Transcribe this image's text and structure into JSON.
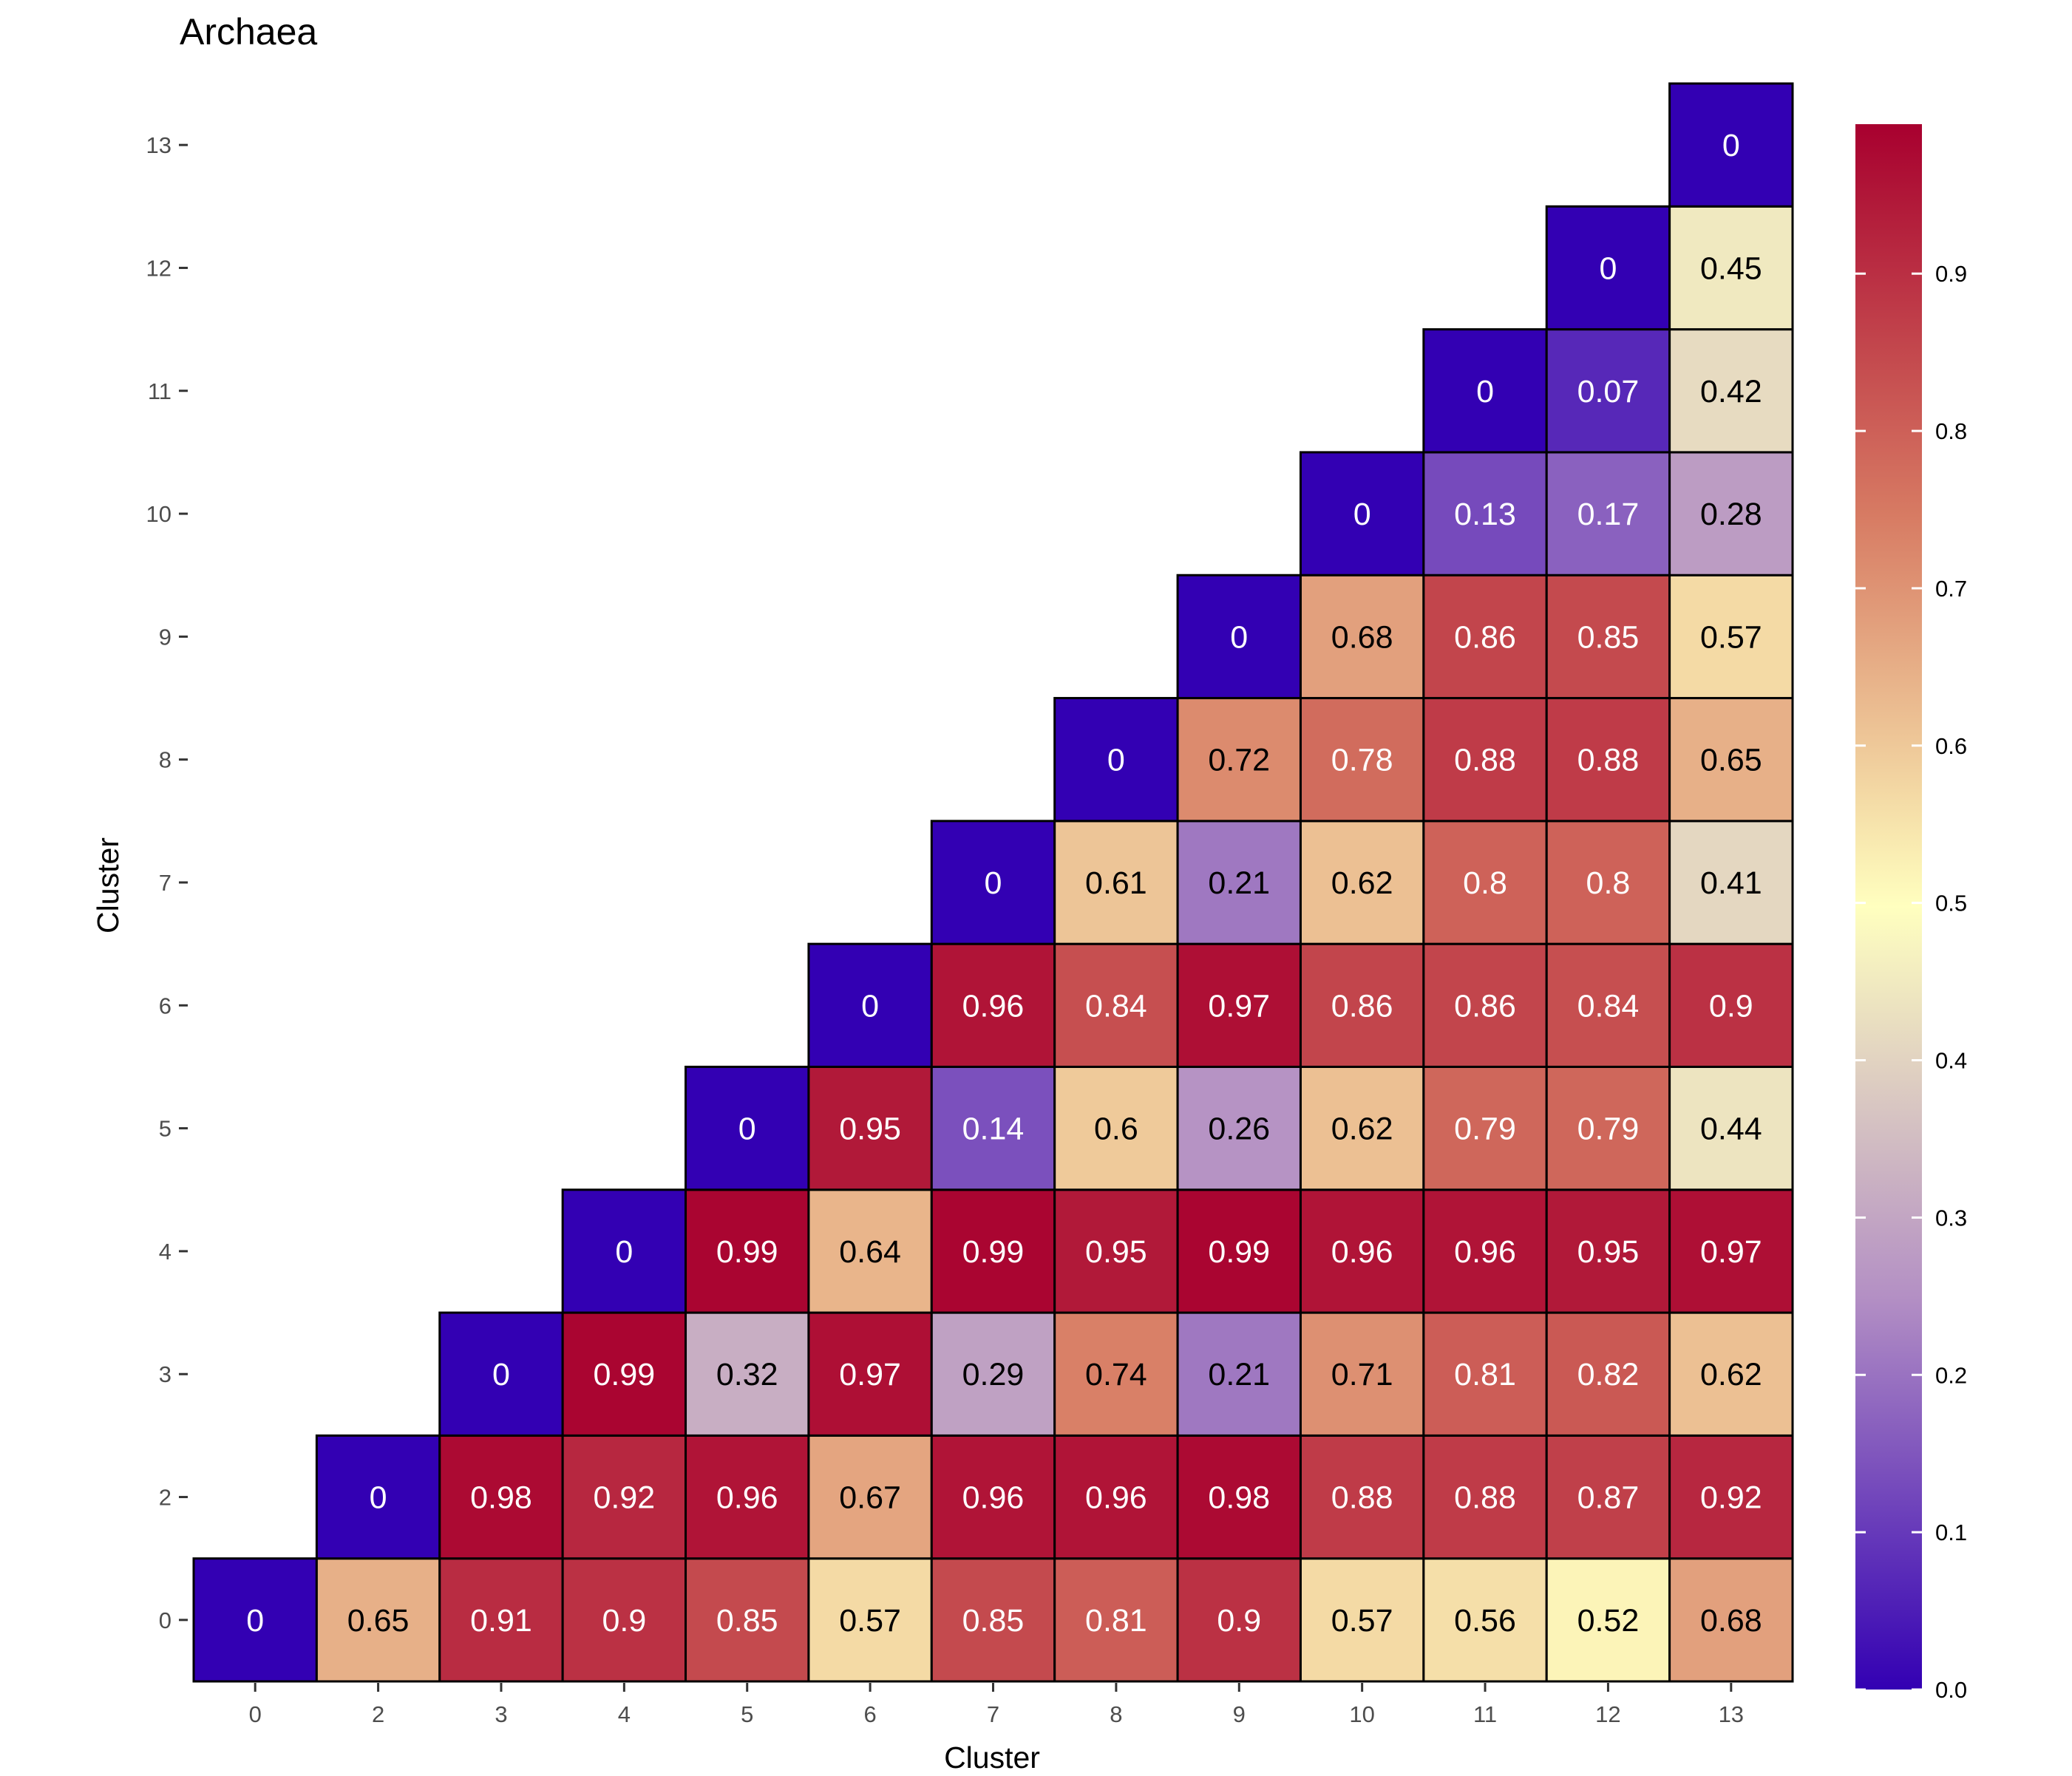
{
  "chart_data": {
    "type": "heatmap",
    "title": "Archaea",
    "xlabel": "Cluster",
    "ylabel": "Cluster",
    "x_categories": [
      "0",
      "2",
      "3",
      "4",
      "5",
      "6",
      "7",
      "8",
      "9",
      "10",
      "11",
      "12",
      "13"
    ],
    "y_categories": [
      "0",
      "2",
      "3",
      "4",
      "5",
      "6",
      "7",
      "8",
      "9",
      "10",
      "11",
      "12",
      "13"
    ],
    "values": [
      [
        0,
        0.65,
        0.91,
        0.9,
        0.85,
        0.57,
        0.85,
        0.81,
        0.9,
        0.57,
        0.56,
        0.52,
        0.68
      ],
      [
        null,
        0,
        0.98,
        0.92,
        0.96,
        0.67,
        0.96,
        0.96,
        0.98,
        0.88,
        0.88,
        0.87,
        0.92
      ],
      [
        null,
        null,
        0,
        0.99,
        0.32,
        0.97,
        0.29,
        0.74,
        0.21,
        0.71,
        0.81,
        0.82,
        0.62
      ],
      [
        null,
        null,
        null,
        0,
        0.99,
        0.64,
        0.99,
        0.95,
        0.99,
        0.96,
        0.96,
        0.95,
        0.97
      ],
      [
        null,
        null,
        null,
        null,
        0,
        0.95,
        0.14,
        0.6,
        0.26,
        0.62,
        0.79,
        0.79,
        0.44
      ],
      [
        null,
        null,
        null,
        null,
        null,
        0,
        0.96,
        0.84,
        0.97,
        0.86,
        0.86,
        0.84,
        0.9
      ],
      [
        null,
        null,
        null,
        null,
        null,
        null,
        0,
        0.61,
        0.21,
        0.62,
        0.8,
        0.8,
        0.41
      ],
      [
        null,
        null,
        null,
        null,
        null,
        null,
        null,
        0,
        0.72,
        0.78,
        0.88,
        0.88,
        0.65
      ],
      [
        null,
        null,
        null,
        null,
        null,
        null,
        null,
        null,
        0,
        0.68,
        0.86,
        0.85,
        0.57
      ],
      [
        null,
        null,
        null,
        null,
        null,
        null,
        null,
        null,
        null,
        0,
        0.13,
        0.17,
        0.28
      ],
      [
        null,
        null,
        null,
        null,
        null,
        null,
        null,
        null,
        null,
        null,
        0,
        0.07,
        0.42
      ],
      [
        null,
        null,
        null,
        null,
        null,
        null,
        null,
        null,
        null,
        null,
        null,
        0,
        0.45
      ],
      [
        null,
        null,
        null,
        null,
        null,
        null,
        null,
        null,
        null,
        null,
        null,
        null,
        0
      ]
    ],
    "color_scale": {
      "min": 0.0,
      "max": 1.0,
      "stops": [
        {
          "value": 0.0,
          "color": "#3300b3"
        },
        {
          "value": 0.25,
          "color": "#b38fc4"
        },
        {
          "value": 0.5,
          "color": "#ffffbf"
        },
        {
          "value": 0.75,
          "color": "#d77b63"
        },
        {
          "value": 1.0,
          "color": "#a8002f"
        }
      ]
    },
    "legend": {
      "position": "right",
      "ticks": [
        "0.0",
        "0.1",
        "0.2",
        "0.3",
        "0.4",
        "0.5",
        "0.6",
        "0.7",
        "0.8",
        "0.9"
      ]
    },
    "grid": false
  }
}
